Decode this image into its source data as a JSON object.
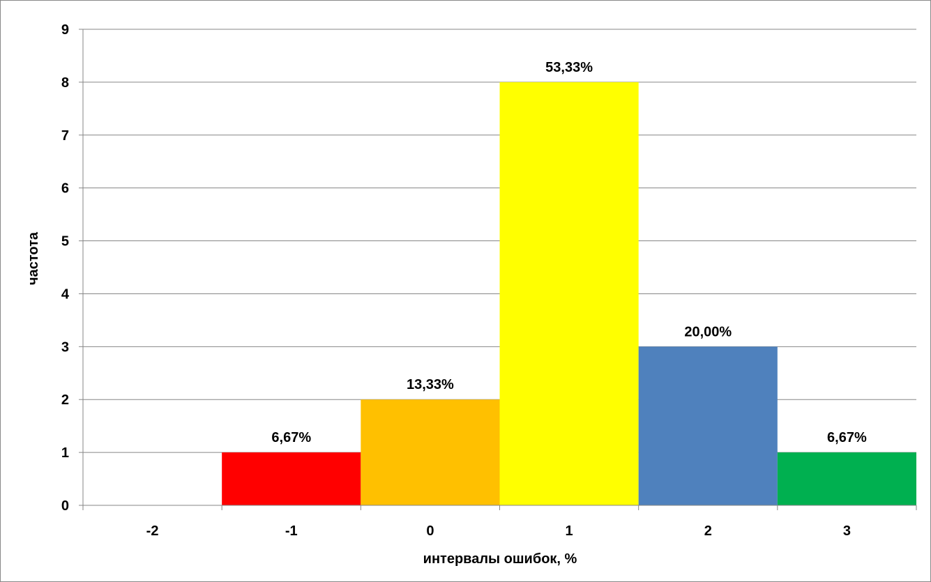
{
  "chart_data": {
    "type": "bar",
    "title": "",
    "xlabel": "интервалы ошибок, %",
    "ylabel": "частота",
    "categories": [
      "-2",
      "-1",
      "0",
      "1",
      "2",
      "3"
    ],
    "values": [
      0,
      1,
      2,
      8,
      3,
      1
    ],
    "data_labels": [
      "",
      "6,67%",
      "13,33%",
      "53,33%",
      "20,00%",
      "6,67%"
    ],
    "colors": [
      "#ffffff",
      "#ff0000",
      "#ffc000",
      "#ffff00",
      "#4f81bd",
      "#00b050"
    ],
    "ylim": [
      0,
      9
    ],
    "yticks": [
      "0",
      "1",
      "2",
      "3",
      "4",
      "5",
      "6",
      "7",
      "8",
      "9"
    ],
    "grid": true,
    "legend": "none"
  }
}
